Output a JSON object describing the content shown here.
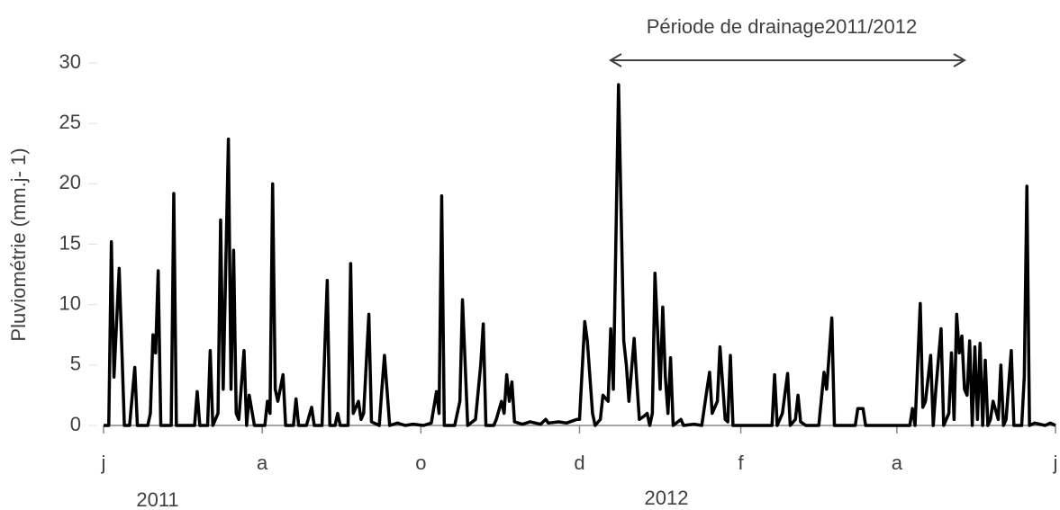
{
  "chart_data": {
    "type": "line",
    "annotation": "Période de drainage2011/2012",
    "y_label": "Pluviométrie (mm.j- 1)",
    "year_labels": [
      "2011",
      "2012"
    ],
    "color": "#000000",
    "xlim": [
      0,
      366
    ],
    "xticks": [
      {
        "value": 0,
        "label": "j"
      },
      {
        "value": 61,
        "label": "a"
      },
      {
        "value": 122,
        "label": "o"
      },
      {
        "value": 183,
        "label": "d"
      },
      {
        "value": 245,
        "label": "f"
      },
      {
        "value": 305,
        "label": "a"
      },
      {
        "value": 366,
        "label": "j"
      }
    ],
    "ylim": [
      0,
      30
    ],
    "yticks": [
      0,
      5,
      10,
      15,
      20,
      25,
      30
    ],
    "grid": false,
    "x": [
      0,
      2,
      3,
      4,
      6,
      8,
      10,
      12,
      13,
      17,
      18,
      19,
      20,
      21,
      22,
      26,
      27,
      28,
      35,
      36,
      37,
      40,
      41,
      42,
      44,
      45,
      46,
      48,
      49,
      50,
      51,
      52,
      54,
      55,
      56,
      58,
      62,
      63,
      64,
      65,
      66,
      67,
      69,
      70,
      73,
      74,
      75,
      78,
      80,
      81,
      84,
      86,
      87,
      89,
      90,
      91,
      94,
      95,
      96,
      98,
      99,
      100,
      102,
      103,
      106,
      107,
      108,
      110,
      113,
      116,
      119,
      123,
      126,
      128,
      129,
      130,
      131,
      135,
      137,
      138,
      140,
      143,
      145,
      146,
      147,
      150,
      151,
      153,
      154,
      155,
      156,
      157,
      158,
      161,
      164,
      168,
      170,
      171,
      175,
      178,
      182,
      183,
      185,
      186,
      188,
      189,
      191,
      192,
      194,
      195,
      196,
      198,
      200,
      201,
      202,
      204,
      205,
      206,
      208,
      209,
      210,
      211,
      212,
      214,
      215,
      216,
      217,
      218,
      219,
      222,
      223,
      227,
      230,
      232,
      233,
      234,
      236,
      237,
      239,
      240,
      241,
      242,
      248,
      253,
      257,
      258,
      259,
      261,
      263,
      264,
      266,
      267,
      268,
      270,
      275,
      277,
      278,
      280,
      281,
      286,
      289,
      290,
      292,
      293,
      310,
      311,
      312,
      314,
      315,
      316,
      318,
      319,
      320,
      322,
      323,
      325,
      326,
      327,
      328,
      329,
      330,
      331,
      332,
      333,
      334,
      335,
      336,
      337,
      338,
      339,
      340,
      341,
      342,
      344,
      345,
      346,
      347,
      349,
      350,
      353,
      354,
      355,
      356,
      358,
      362,
      364,
      366
    ],
    "values": [
      0,
      0,
      15.2,
      4,
      13,
      0,
      0,
      4.8,
      0,
      0,
      1,
      7.5,
      6,
      12.8,
      0,
      0,
      19.2,
      0,
      0,
      2.8,
      0,
      0,
      6.2,
      0,
      1,
      17,
      3,
      23.7,
      3,
      14.5,
      1,
      0.5,
      6.2,
      0,
      2.5,
      0,
      0,
      2,
      1,
      20,
      3,
      2,
      4.2,
      0,
      0,
      2.2,
      0,
      0,
      1.5,
      0,
      0,
      12,
      0,
      0,
      1,
      0,
      0,
      13.4,
      1,
      2,
      0.5,
      1,
      9.2,
      0.3,
      0,
      3,
      5.8,
      0,
      0.2,
      0,
      0.1,
      0,
      0.2,
      2.8,
      1,
      19,
      0,
      0,
      2,
      10.4,
      0,
      0.5,
      5,
      8.4,
      0,
      0,
      0.5,
      2,
      1,
      4.2,
      2,
      3.6,
      0.3,
      0.1,
      0.3,
      0.1,
      0.5,
      0.2,
      0.3,
      0.2,
      0.5,
      0.5,
      8.6,
      7,
      1,
      0,
      0.5,
      2.5,
      2,
      8,
      3,
      28.2,
      7,
      5,
      2,
      7.2,
      3.7,
      0.5,
      0.8,
      1,
      0,
      1,
      12.6,
      3,
      9.8,
      4,
      1,
      5.6,
      0,
      0.5,
      0,
      0.1,
      0,
      3,
      4.4,
      1,
      2,
      6.5,
      0.5,
      0.3,
      5.8,
      0,
      0,
      0,
      0,
      4.2,
      0,
      1,
      4.3,
      0,
      0.5,
      2.5,
      0.3,
      0,
      0,
      4.4,
      3,
      8.9,
      0,
      0,
      0,
      1.4,
      1.4,
      0,
      0,
      1.4,
      0,
      10.1,
      1.5,
      2,
      5.8,
      0,
      3,
      8,
      0,
      1,
      6,
      0.5,
      9.2,
      6,
      7.4,
      3,
      2.5,
      7,
      0,
      6.5,
      0.5,
      6.8,
      0,
      5.4,
      0,
      0.5,
      2,
      0.5,
      5,
      0,
      0.5,
      6.2,
      0,
      0,
      4,
      19.8,
      0,
      0.2,
      0,
      0.2,
      0
    ]
  }
}
